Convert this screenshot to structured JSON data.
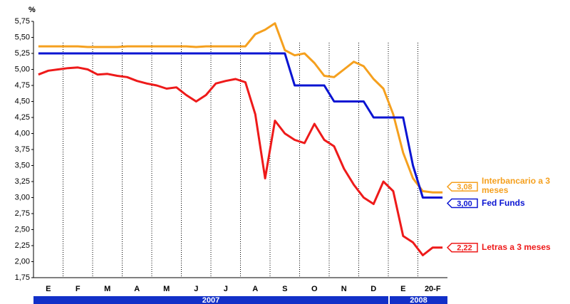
{
  "chart_data": {
    "type": "line",
    "y_label": "%",
    "categories": [
      null,
      "E",
      null,
      null,
      "F",
      null,
      null,
      "M",
      null,
      null,
      "A",
      null,
      null,
      "M",
      null,
      null,
      "J",
      null,
      null,
      "J",
      null,
      null,
      "A",
      null,
      null,
      "S",
      null,
      null,
      "O",
      null,
      null,
      "N",
      null,
      null,
      "D",
      null,
      null,
      "E",
      null,
      null,
      "20-F",
      null
    ],
    "years": [
      "2007",
      "2008"
    ],
    "ylim": [
      1.75,
      5.75
    ],
    "yticks": [
      {
        "value": 1.75,
        "label": "1,75"
      },
      {
        "value": 2,
        "label": "2,00"
      },
      {
        "value": 2.25,
        "label": "2,25"
      },
      {
        "value": 2.5,
        "label": "2,50"
      },
      {
        "value": 2.75,
        "label": "2,75"
      },
      {
        "value": 3,
        "label": "3,00"
      },
      {
        "value": 3.25,
        "label": "3,25"
      },
      {
        "value": 3.5,
        "label": "3,50"
      },
      {
        "value": 3.75,
        "label": "3,75"
      },
      {
        "value": 4,
        "label": "4,00"
      },
      {
        "value": 4.25,
        "label": "4,25"
      },
      {
        "value": 4.5,
        "label": "4,50"
      },
      {
        "value": 4.75,
        "label": "4,75"
      },
      {
        "value": 5,
        "label": "5,00"
      },
      {
        "value": 5.25,
        "label": "5,25"
      },
      {
        "value": 5.5,
        "label": "5,50"
      },
      {
        "value": 5.75,
        "label": "5,75"
      }
    ],
    "series": [
      {
        "name": "Interbancario a 3 meses",
        "color": "#f5a01e",
        "values": [
          5.36,
          5.36,
          5.36,
          5.36,
          5.36,
          5.35,
          5.35,
          5.35,
          5.35,
          5.36,
          5.36,
          5.36,
          5.36,
          5.36,
          5.36,
          5.36,
          5.35,
          5.36,
          5.36,
          5.36,
          5.36,
          5.36,
          5.55,
          5.62,
          5.72,
          5.3,
          5.22,
          5.25,
          5.1,
          4.9,
          4.88,
          5.0,
          5.12,
          5.05,
          4.85,
          4.7,
          4.3,
          3.7,
          3.3,
          3.1,
          3.08,
          3.08
        ],
        "value_labels": [
          null,
          null,
          null,
          null,
          null,
          null,
          null,
          null,
          null,
          null,
          null,
          null,
          null,
          null,
          null,
          null,
          null,
          null,
          null,
          null,
          null,
          null,
          null,
          null,
          null,
          null,
          null,
          null,
          null,
          null,
          null,
          null,
          null,
          null,
          null,
          null,
          null,
          null,
          null,
          null,
          null,
          "3,08"
        ]
      },
      {
        "name": "Fed Funds",
        "color": "#0a14d2",
        "values": [
          5.25,
          5.25,
          5.25,
          5.25,
          5.25,
          5.25,
          5.25,
          5.25,
          5.25,
          5.25,
          5.25,
          5.25,
          5.25,
          5.25,
          5.25,
          5.25,
          5.25,
          5.25,
          5.25,
          5.25,
          5.25,
          5.25,
          5.25,
          5.25,
          5.25,
          5.25,
          4.75,
          4.75,
          4.75,
          4.75,
          4.5,
          4.5,
          4.5,
          4.5,
          4.25,
          4.25,
          4.25,
          4.25,
          3.5,
          3.0,
          3.0,
          3.0
        ],
        "value_labels": [
          null,
          null,
          null,
          null,
          null,
          null,
          null,
          null,
          null,
          null,
          null,
          null,
          null,
          null,
          null,
          null,
          null,
          null,
          null,
          null,
          null,
          null,
          null,
          null,
          null,
          null,
          null,
          null,
          null,
          null,
          null,
          null,
          null,
          null,
          null,
          null,
          null,
          null,
          null,
          null,
          null,
          "3,00"
        ]
      },
      {
        "name": "Letras a 3 meses",
        "color": "#ee1a1a",
        "values": [
          4.92,
          4.98,
          5.0,
          5.02,
          5.03,
          5.0,
          4.92,
          4.93,
          4.9,
          4.88,
          4.82,
          4.78,
          4.75,
          4.7,
          4.72,
          4.6,
          4.5,
          4.6,
          4.78,
          4.82,
          4.85,
          4.8,
          4.3,
          3.3,
          4.2,
          4.0,
          3.9,
          3.85,
          4.15,
          3.9,
          3.8,
          3.45,
          3.2,
          3.0,
          2.9,
          3.25,
          3.1,
          2.4,
          2.3,
          2.1,
          2.22,
          2.22
        ],
        "value_labels": [
          null,
          null,
          null,
          null,
          null,
          null,
          null,
          null,
          null,
          null,
          null,
          null,
          null,
          null,
          null,
          null,
          null,
          null,
          null,
          null,
          null,
          null,
          null,
          null,
          null,
          null,
          null,
          null,
          null,
          null,
          null,
          null,
          null,
          null,
          null,
          null,
          null,
          null,
          null,
          null,
          null,
          "2,22"
        ]
      }
    ]
  }
}
